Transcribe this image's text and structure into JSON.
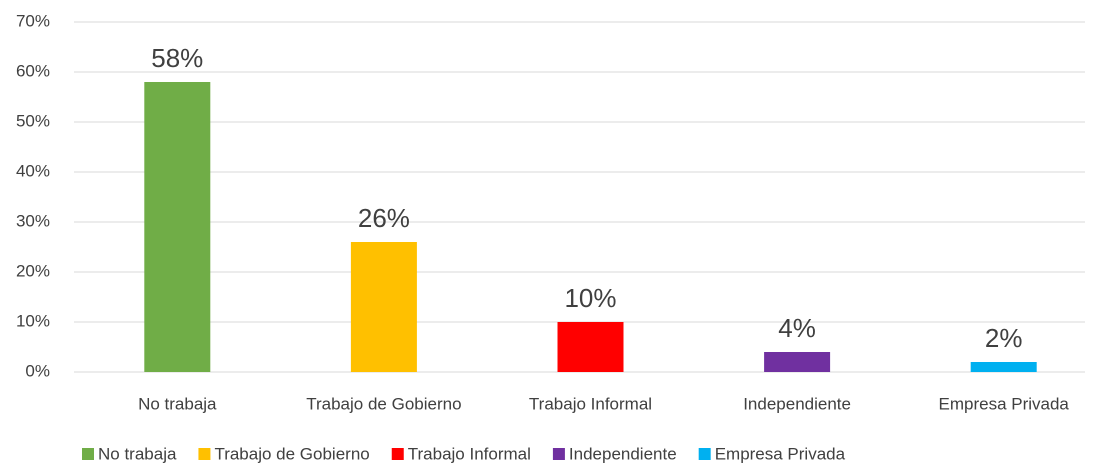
{
  "chart_data": {
    "type": "bar",
    "categories": [
      "No trabaja",
      "Trabajo de Gobierno",
      "Trabajo Informal",
      "Independiente",
      "Empresa Privada"
    ],
    "values": [
      58,
      26,
      10,
      4,
      2
    ],
    "value_labels": [
      "58%",
      "26%",
      "10%",
      "4%",
      "2%"
    ],
    "colors": [
      "#70ad47",
      "#ffc000",
      "#ff0000",
      "#7030a0",
      "#00b0f0"
    ],
    "ylim": [
      0,
      70
    ],
    "yticks": [
      {
        "value": 0,
        "label": "0%"
      },
      {
        "value": 10,
        "label": "10%"
      },
      {
        "value": 20,
        "label": "20%"
      },
      {
        "value": 30,
        "label": "30%"
      },
      {
        "value": 40,
        "label": "40%"
      },
      {
        "value": 50,
        "label": "50%"
      },
      {
        "value": 60,
        "label": "60%"
      },
      {
        "value": 70,
        "label": "70%"
      }
    ],
    "grid": true,
    "legend": "bottom"
  }
}
